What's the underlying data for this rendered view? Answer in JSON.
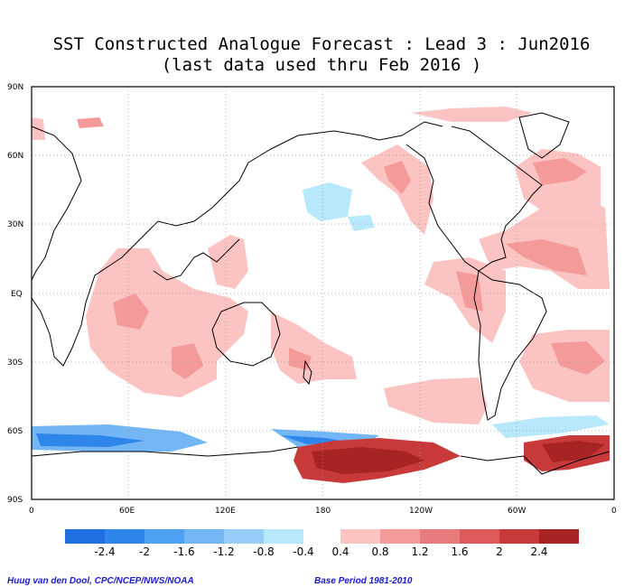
{
  "title": {
    "line1": "SST Constructed Analogue Forecast : Lead 3 : Jun2016",
    "line2": "(last data used thru Feb 2016 )"
  },
  "axes": {
    "lat_labels": [
      "90N",
      "60N",
      "30N",
      "EQ",
      "30S",
      "60S",
      "90S"
    ],
    "lon_labels": [
      "0",
      "60E",
      "120E",
      "180",
      "120W",
      "60W",
      "0"
    ]
  },
  "colorbar": {
    "negative": {
      "colors": [
        "#1f6fe0",
        "#2f86ea",
        "#4ea0f2",
        "#73b6f6",
        "#98cdf9",
        "#b8e8fb"
      ],
      "labels": [
        "-2.4",
        "-2",
        "-1.6",
        "-1.2",
        "-0.8",
        "-0.4"
      ]
    },
    "positive": {
      "colors": [
        "#fcc3c3",
        "#f49a9a",
        "#e87b7b",
        "#dc5a5a",
        "#c83a3a",
        "#a82424"
      ],
      "labels": [
        "0.4",
        "0.8",
        "1.2",
        "1.6",
        "2",
        "2.4"
      ]
    }
  },
  "credits": {
    "left": "Huug van den Dool, CPC/NCEP/NWS/NOAA",
    "right": "Base Period 1981-2010"
  },
  "colors": {
    "pink_light": "#fcc3c3",
    "pink_mid": "#f49a9a",
    "red_dark": "#a82424",
    "blue_light": "#b8e8fb",
    "blue_dark": "#1f6fe0"
  }
}
